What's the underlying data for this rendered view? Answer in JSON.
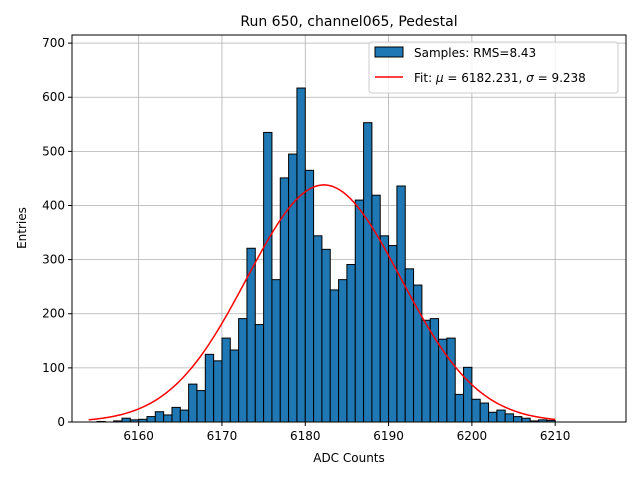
{
  "chart_data": {
    "type": "bar",
    "title": "Run 650, channel065, Pedestal",
    "xlabel": "ADC Counts",
    "ylabel": "Entries",
    "xlim": [
      6152.0,
      6218.5
    ],
    "ylim": [
      0,
      715
    ],
    "xticks": [
      6160,
      6170,
      6180,
      6190,
      6200,
      6210
    ],
    "yticks": [
      0,
      100,
      200,
      300,
      400,
      500,
      600,
      700
    ],
    "grid": true,
    "legend_position": "top-right",
    "bar_color": "#1f77b4",
    "fit_color": "#ff0000",
    "legend": {
      "samples_label": "Samples: RMS=8.43",
      "fit_label": "Fit: μ = 6182.231, σ = 9.238",
      "fit_label_parts": {
        "prefix": "Fit: ",
        "mu_symbol": "μ",
        "mu_text": " = 6182.231, ",
        "sigma_symbol": "σ",
        "sigma_text": " = 9.238"
      }
    },
    "histogram": {
      "bin_width": 1,
      "bin_starts": [
        6155,
        6156,
        6157,
        6158,
        6159,
        6160,
        6161,
        6162,
        6163,
        6164,
        6165,
        6166,
        6167,
        6168,
        6169,
        6170,
        6171,
        6172,
        6173,
        6174,
        6175,
        6176,
        6177,
        6178,
        6179,
        6180,
        6181,
        6182,
        6183,
        6184,
        6185,
        6186,
        6187,
        6188,
        6189,
        6190,
        6191,
        6192,
        6193,
        6194,
        6195,
        6196,
        6197,
        6198,
        6199,
        6200,
        6201,
        6202,
        6203,
        6204,
        6205,
        6206,
        6207,
        6208,
        6209
      ],
      "counts": [
        1,
        0,
        2,
        7,
        4,
        5,
        10,
        19,
        13,
        27,
        22,
        70,
        58,
        125,
        113,
        155,
        133,
        191,
        321,
        180,
        535,
        263,
        451,
        495,
        617,
        465,
        344,
        319,
        244,
        263,
        291,
        410,
        553,
        419,
        344,
        326,
        436,
        283,
        253,
        188,
        191,
        153,
        155,
        51,
        101,
        42,
        35,
        18,
        22,
        15,
        10,
        7,
        2,
        4,
        3
      ]
    },
    "fit": {
      "type": "gaussian",
      "mu": 6182.231,
      "sigma": 9.238,
      "amplitude": 438,
      "x_range": [
        6154,
        6210
      ]
    }
  }
}
